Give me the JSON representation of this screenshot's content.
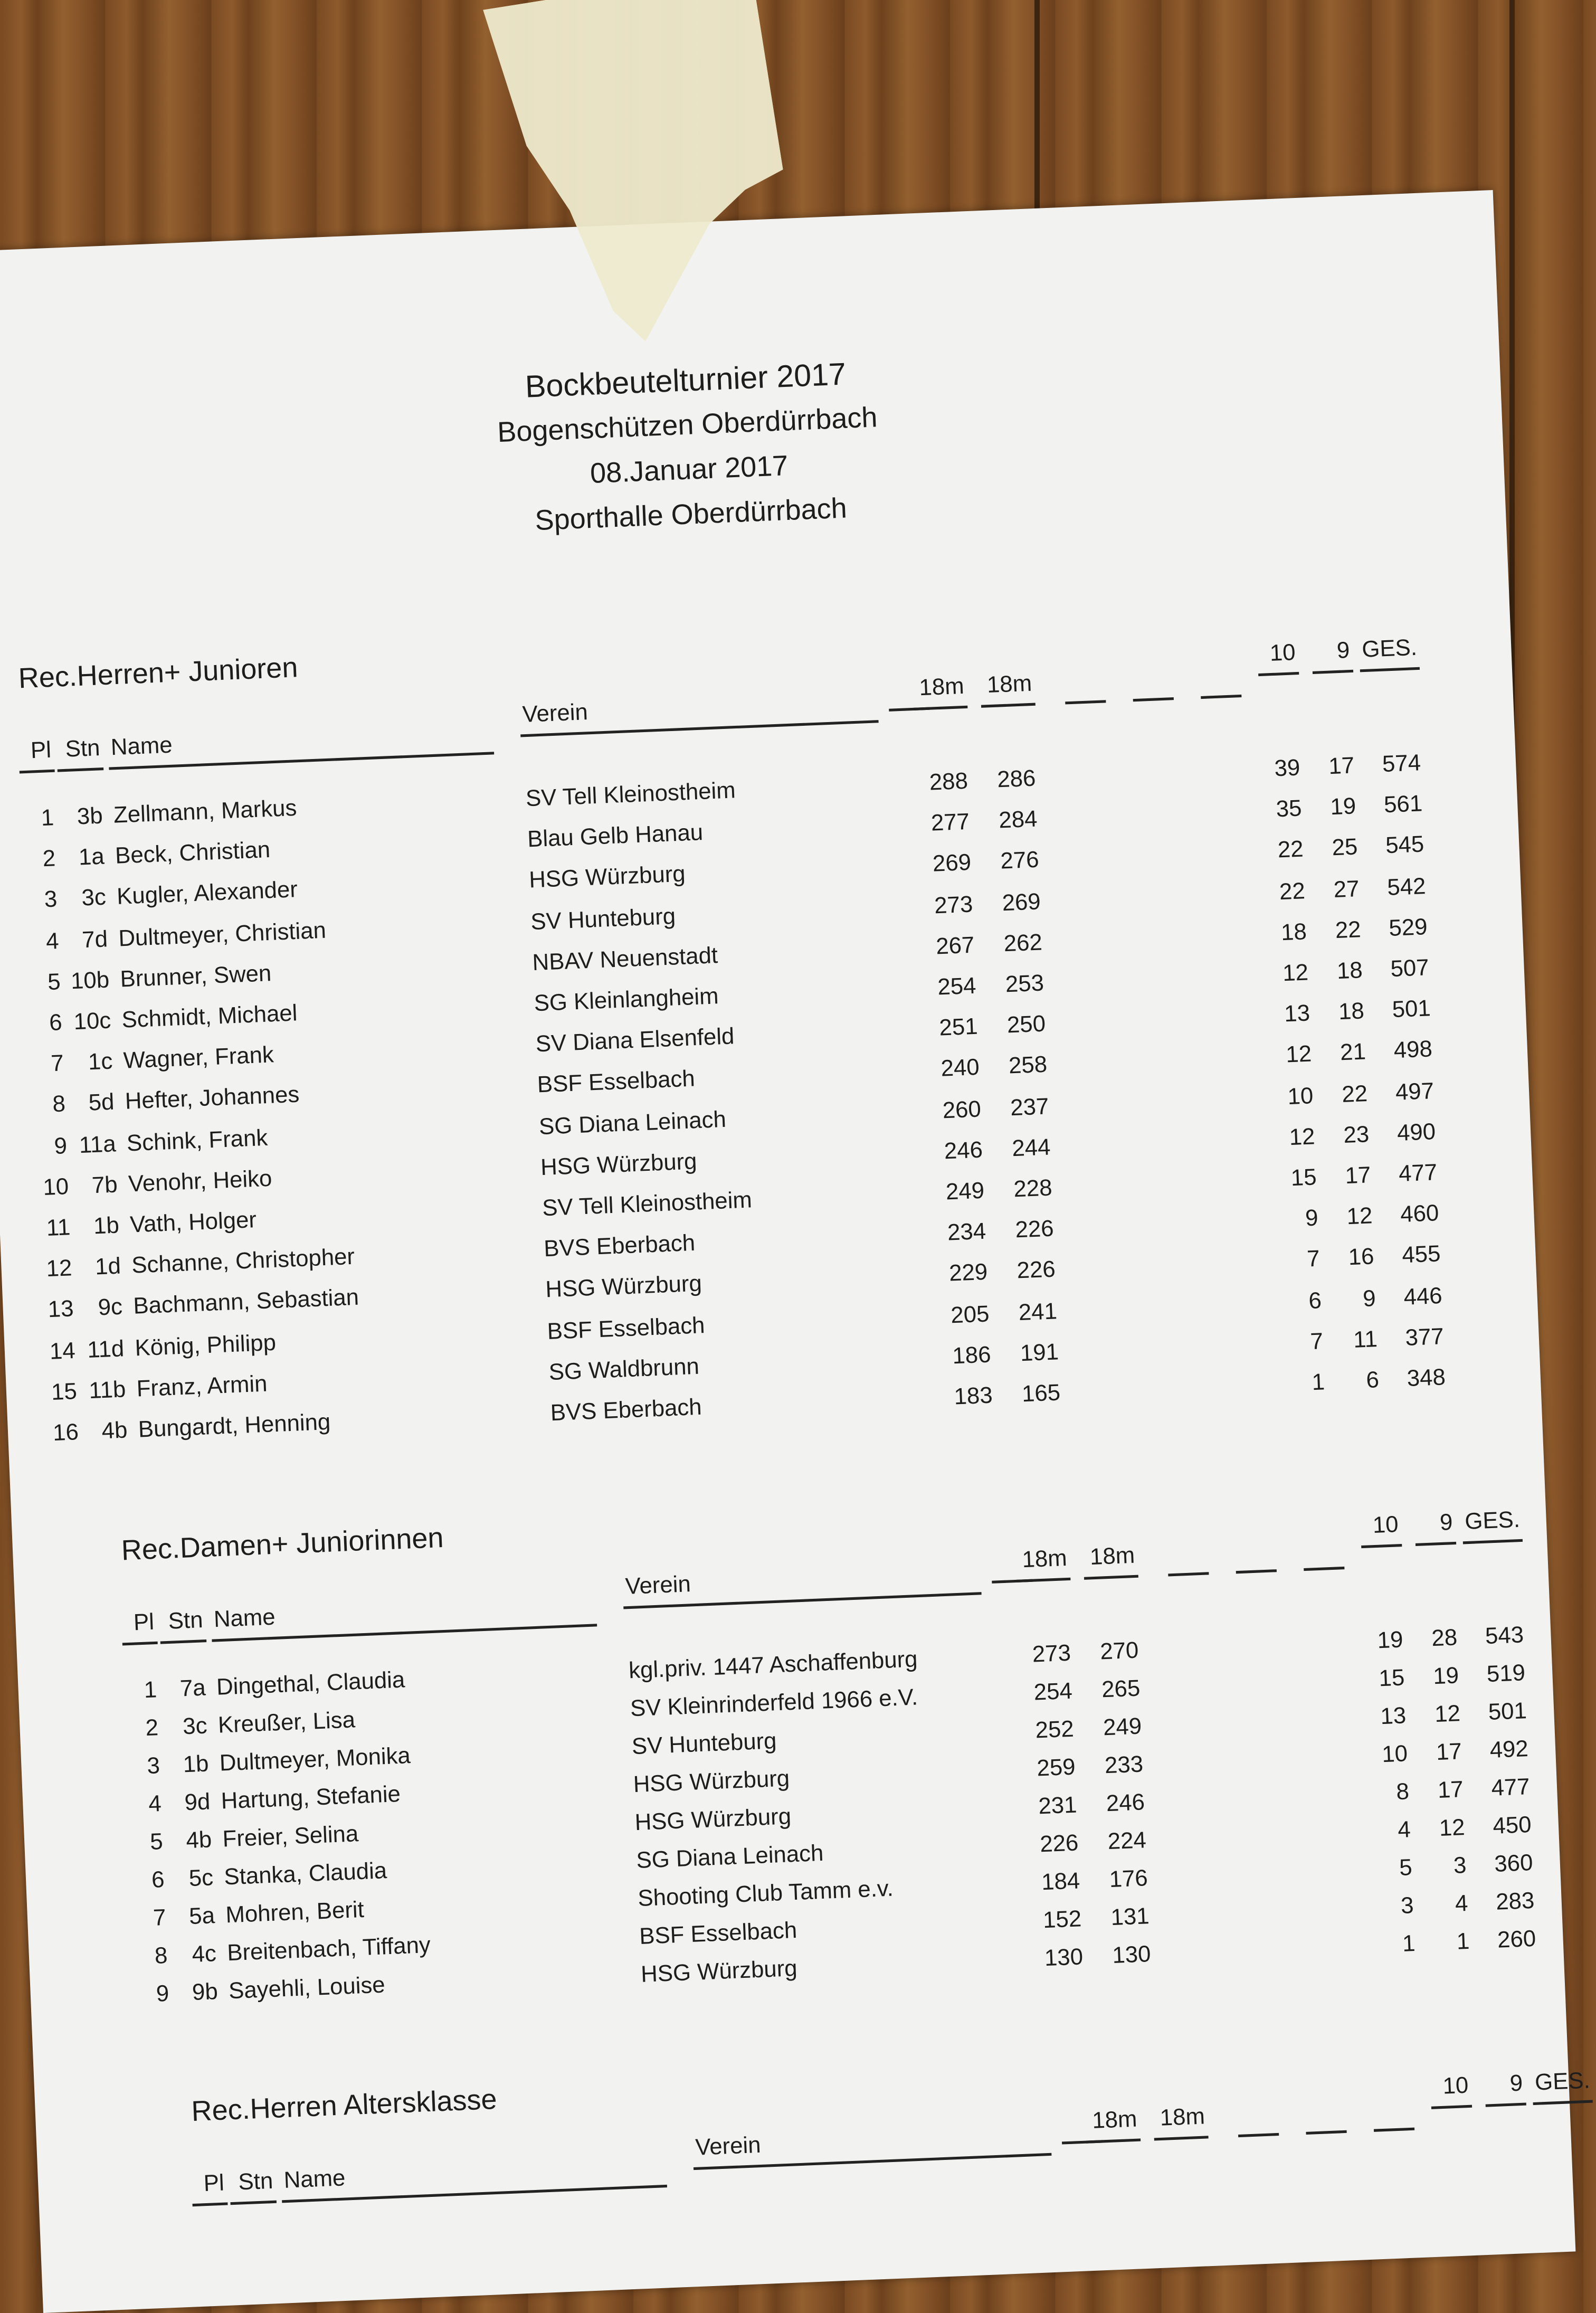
{
  "header": {
    "title": "Bockbeutelturnier 2017",
    "organizer": "Bogenschützen Oberdürrbach",
    "date": "08.Januar 2017",
    "venue": "Sporthalle Oberdürrbach"
  },
  "columns": {
    "pl": "Pl",
    "stn": "Stn",
    "name": "Name",
    "verein": "Verein",
    "d1": "18m",
    "d2": "18m",
    "tens": "10",
    "nines": "9",
    "total": "GES."
  },
  "sections": [
    {
      "title": "Rec.Herren+ Junioren",
      "rows": [
        [
          "1",
          "3b",
          "Zellmann, Markus",
          "SV Tell Kleinostheim",
          "288",
          "286",
          "39",
          "17",
          "574"
        ],
        [
          "2",
          "1a",
          "Beck, Christian",
          "Blau Gelb Hanau",
          "277",
          "284",
          "35",
          "19",
          "561"
        ],
        [
          "3",
          "3c",
          "Kugler, Alexander",
          "HSG Würzburg",
          "269",
          "276",
          "22",
          "25",
          "545"
        ],
        [
          "4",
          "7d",
          "Dultmeyer, Christian",
          "SV Hunteburg",
          "273",
          "269",
          "22",
          "27",
          "542"
        ],
        [
          "5",
          "10b",
          "Brunner, Swen",
          "NBAV Neuenstadt",
          "267",
          "262",
          "18",
          "22",
          "529"
        ],
        [
          "6",
          "10c",
          "Schmidt, Michael",
          "SG Kleinlangheim",
          "254",
          "253",
          "12",
          "18",
          "507"
        ],
        [
          "7",
          "1c",
          "Wagner, Frank",
          "SV Diana Elsenfeld",
          "251",
          "250",
          "13",
          "18",
          "501"
        ],
        [
          "8",
          "5d",
          "Hefter, Johannes",
          "BSF Esselbach",
          "240",
          "258",
          "12",
          "21",
          "498"
        ],
        [
          "9",
          "11a",
          "Schink, Frank",
          "SG Diana Leinach",
          "260",
          "237",
          "10",
          "22",
          "497"
        ],
        [
          "10",
          "7b",
          "Venohr, Heiko",
          "HSG Würzburg",
          "246",
          "244",
          "12",
          "23",
          "490"
        ],
        [
          "11",
          "1b",
          "Vath, Holger",
          "SV Tell Kleinostheim",
          "249",
          "228",
          "15",
          "17",
          "477"
        ],
        [
          "12",
          "1d",
          "Schanne, Christopher",
          "BVS Eberbach",
          "234",
          "226",
          "9",
          "12",
          "460"
        ],
        [
          "13",
          "9c",
          "Bachmann, Sebastian",
          "HSG Würzburg",
          "229",
          "226",
          "7",
          "16",
          "455"
        ],
        [
          "14",
          "11d",
          "König, Philipp",
          "BSF Esselbach",
          "205",
          "241",
          "6",
          "9",
          "446"
        ],
        [
          "15",
          "11b",
          "Franz, Armin",
          "SG Waldbrunn",
          "186",
          "191",
          "7",
          "11",
          "377"
        ],
        [
          "16",
          "4b",
          "Bungardt, Henning",
          "BVS Eberbach",
          "183",
          "165",
          "1",
          "6",
          "348"
        ]
      ]
    },
    {
      "title": "Rec.Damen+ Juniorinnen",
      "rows": [
        [
          "1",
          "7a",
          "Dingethal, Claudia",
          "kgl.priv. 1447 Aschaffenburg",
          "273",
          "270",
          "19",
          "28",
          "543"
        ],
        [
          "2",
          "3c",
          "Kreußer, Lisa",
          "SV Kleinrinderfeld 1966 e.V.",
          "254",
          "265",
          "15",
          "19",
          "519"
        ],
        [
          "3",
          "1b",
          "Dultmeyer, Monika",
          "SV Hunteburg",
          "252",
          "249",
          "13",
          "12",
          "501"
        ],
        [
          "4",
          "9d",
          "Hartung, Stefanie",
          "HSG Würzburg",
          "259",
          "233",
          "10",
          "17",
          "492"
        ],
        [
          "5",
          "4b",
          "Freier, Selina",
          "HSG Würzburg",
          "231",
          "246",
          "8",
          "17",
          "477"
        ],
        [
          "6",
          "5c",
          "Stanka, Claudia",
          "SG Diana Leinach",
          "226",
          "224",
          "4",
          "12",
          "450"
        ],
        [
          "7",
          "5a",
          "Mohren, Berit",
          "Shooting Club Tamm e.v.",
          "184",
          "176",
          "5",
          "3",
          "360"
        ],
        [
          "8",
          "4c",
          "Breitenbach, Tiffany",
          "BSF Esselbach",
          "152",
          "131",
          "3",
          "4",
          "283"
        ],
        [
          "9",
          "9b",
          "Sayehli, Louise",
          "HSG Würzburg",
          "130",
          "130",
          "1",
          "1",
          "260"
        ]
      ]
    },
    {
      "title": "Rec.Herren Altersklasse",
      "rows": []
    }
  ]
}
